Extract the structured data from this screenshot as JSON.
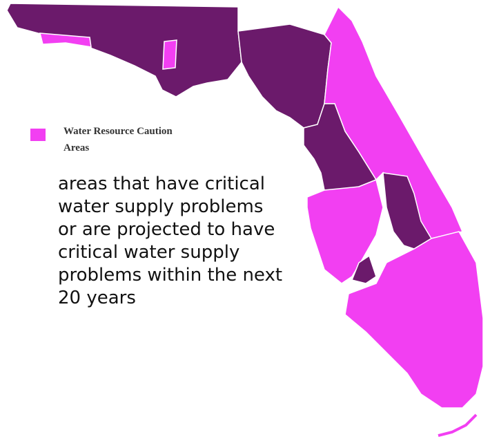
{
  "legend": {
    "label": "Water Resource Caution Areas"
  },
  "description": "areas that have critical water supply problems or are projected to have critical water supply problems within the next 20 years"
}
